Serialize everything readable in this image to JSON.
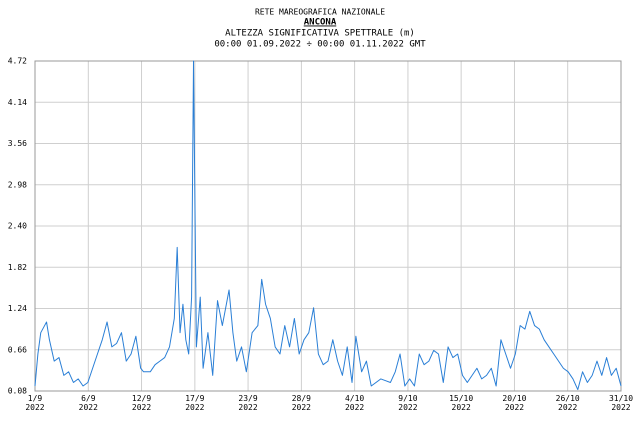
{
  "chart_data": {
    "type": "line",
    "supertitle": "RETE MAREOGRAFICA NAZIONALE",
    "title": "ANCONA",
    "subtitle": "ALTEZZA SIGNIFICATIVA SPETTRALE (m)",
    "period": "00:00 01.09.2022 ÷ 00:00 01.11.2022 GMT",
    "color": "#2a7fd6",
    "grid": true,
    "x": [
      0,
      0.3,
      0.6,
      1,
      1.2,
      1.5,
      2,
      2.5,
      3,
      3.5,
      4,
      4.5,
      5,
      5.5,
      6,
      6.5,
      7,
      7.5,
      8,
      8.5,
      9,
      9.5,
      10,
      10.5,
      11,
      11.3,
      12,
      12.5,
      13,
      13.5,
      14,
      14.5,
      14.8,
      15.1,
      15.4,
      15.7,
      16,
      16.3,
      16.5,
      16.8,
      17.2,
      17.5,
      18,
      18.5,
      19,
      19.5,
      20.2,
      20.6,
      21,
      21.5,
      22,
      22.6,
      23.2,
      23.6,
      24,
      24.5,
      25,
      25.5,
      26,
      26.5,
      27,
      27.5,
      28,
      28.5,
      29,
      29.5,
      30,
      30.5,
      31,
      31.5,
      32,
      32.5,
      33,
      33.4,
      34,
      34.5,
      35,
      36,
      37,
      37.5,
      38,
      38.5,
      39,
      39.5,
      40,
      40.5,
      41,
      41.5,
      42,
      42.5,
      43,
      43.5,
      44,
      44.5,
      45,
      45.5,
      46,
      46.5,
      47,
      47.5,
      48,
      48.5,
      49,
      49.5,
      50,
      50.5,
      51,
      51.5,
      52,
      52.5,
      53,
      53.5,
      54,
      54.5,
      55,
      55.5,
      56,
      56.5,
      57,
      57.5,
      58,
      58.5,
      59,
      59.5,
      60,
      60.5,
      61
    ],
    "values": [
      0.15,
      0.6,
      0.9,
      1.0,
      1.05,
      0.8,
      0.5,
      0.55,
      0.3,
      0.35,
      0.2,
      0.25,
      0.15,
      0.2,
      0.4,
      0.6,
      0.8,
      1.05,
      0.7,
      0.75,
      0.9,
      0.5,
      0.6,
      0.85,
      0.4,
      0.35,
      0.35,
      0.45,
      0.5,
      0.55,
      0.7,
      1.1,
      2.1,
      0.9,
      1.3,
      0.8,
      0.6,
      1.4,
      4.72,
      0.7,
      1.4,
      0.4,
      0.9,
      0.3,
      1.35,
      1.0,
      1.5,
      0.9,
      0.5,
      0.7,
      0.35,
      0.9,
      1.0,
      1.65,
      1.3,
      1.1,
      0.7,
      0.6,
      1.0,
      0.7,
      1.1,
      0.6,
      0.8,
      0.9,
      1.25,
      0.6,
      0.45,
      0.5,
      0.8,
      0.5,
      0.3,
      0.7,
      0.2,
      0.85,
      0.35,
      0.5,
      0.15,
      0.25,
      0.2,
      0.35,
      0.6,
      0.15,
      0.25,
      0.15,
      0.6,
      0.45,
      0.5,
      0.65,
      0.6,
      0.2,
      0.7,
      0.55,
      0.6,
      0.3,
      0.2,
      0.3,
      0.4,
      0.25,
      0.3,
      0.4,
      0.15,
      0.8,
      0.6,
      0.4,
      0.6,
      1.0,
      0.95,
      1.2,
      1.0,
      0.95,
      0.8,
      0.7,
      0.6,
      0.5,
      0.4,
      0.35,
      0.25,
      0.1,
      0.35,
      0.2,
      0.3,
      0.5,
      0.3,
      0.55,
      0.3,
      0.4,
      0.15
    ],
    "xlim": [
      0,
      61
    ],
    "xticks": [
      {
        "value": 0,
        "label": "1/9\n2022"
      },
      {
        "value": 5.55,
        "label": "6/9\n2022"
      },
      {
        "value": 11.09,
        "label": "12/9\n2022"
      },
      {
        "value": 16.64,
        "label": "17/9\n2022"
      },
      {
        "value": 22.18,
        "label": "23/9\n2022"
      },
      {
        "value": 27.73,
        "label": "28/9\n2022"
      },
      {
        "value": 33.27,
        "label": "4/10\n2022"
      },
      {
        "value": 38.82,
        "label": "9/10\n2022"
      },
      {
        "value": 44.36,
        "label": "15/10\n2022"
      },
      {
        "value": 49.91,
        "label": "20/10\n2022"
      },
      {
        "value": 55.45,
        "label": "26/10\n2022"
      },
      {
        "value": 61,
        "label": "31/10\n2022"
      }
    ],
    "ylim": [
      0.08,
      4.72
    ],
    "yticks": [
      0.08,
      0.66,
      1.24,
      1.82,
      {
        "value": 2.4,
        "label": "2.40"
      },
      2.98,
      3.56,
      4.14,
      4.72
    ]
  }
}
